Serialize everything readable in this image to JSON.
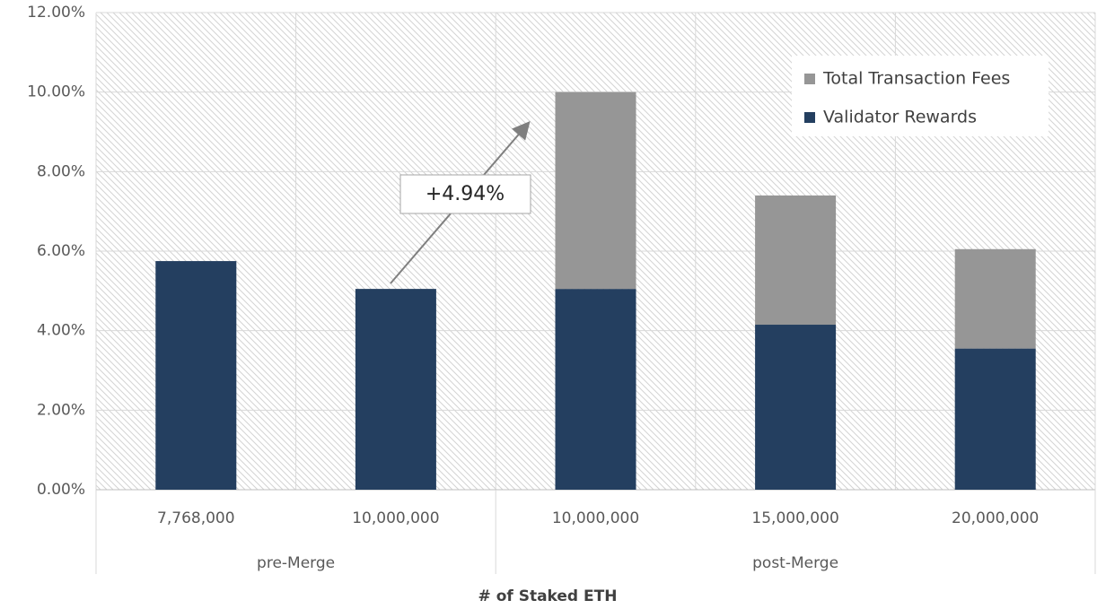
{
  "chart_data": {
    "type": "stacked_bar",
    "x_label": "# of Staked ETH",
    "categories": [
      "7,768,000",
      "10,000,000",
      "10,000,000",
      "15,000,000",
      "20,000,000"
    ],
    "group_labels": [
      "pre-Merge",
      "post-Merge"
    ],
    "series": [
      {
        "name": "Validator Rewards",
        "color": "#243f60",
        "values": [
          5.75,
          5.05,
          5.05,
          4.15,
          3.55
        ]
      },
      {
        "name": "Total Transaction Fees",
        "color": "#969696",
        "values": [
          null,
          null,
          4.95,
          3.25,
          2.5
        ]
      }
    ],
    "ylim": [
      0,
      12
    ],
    "yticks": [
      {
        "value": 0,
        "label": "0.00%"
      },
      {
        "value": 2,
        "label": "2.00%"
      },
      {
        "value": 4,
        "label": "4.00%"
      },
      {
        "value": 6,
        "label": "6.00%"
      },
      {
        "value": 8,
        "label": "8.00%"
      },
      {
        "value": 10,
        "label": "10.00%"
      },
      {
        "value": 12,
        "label": "12.00%"
      }
    ],
    "grid": true,
    "legend": "upper right",
    "annotation": "+4.94%"
  }
}
